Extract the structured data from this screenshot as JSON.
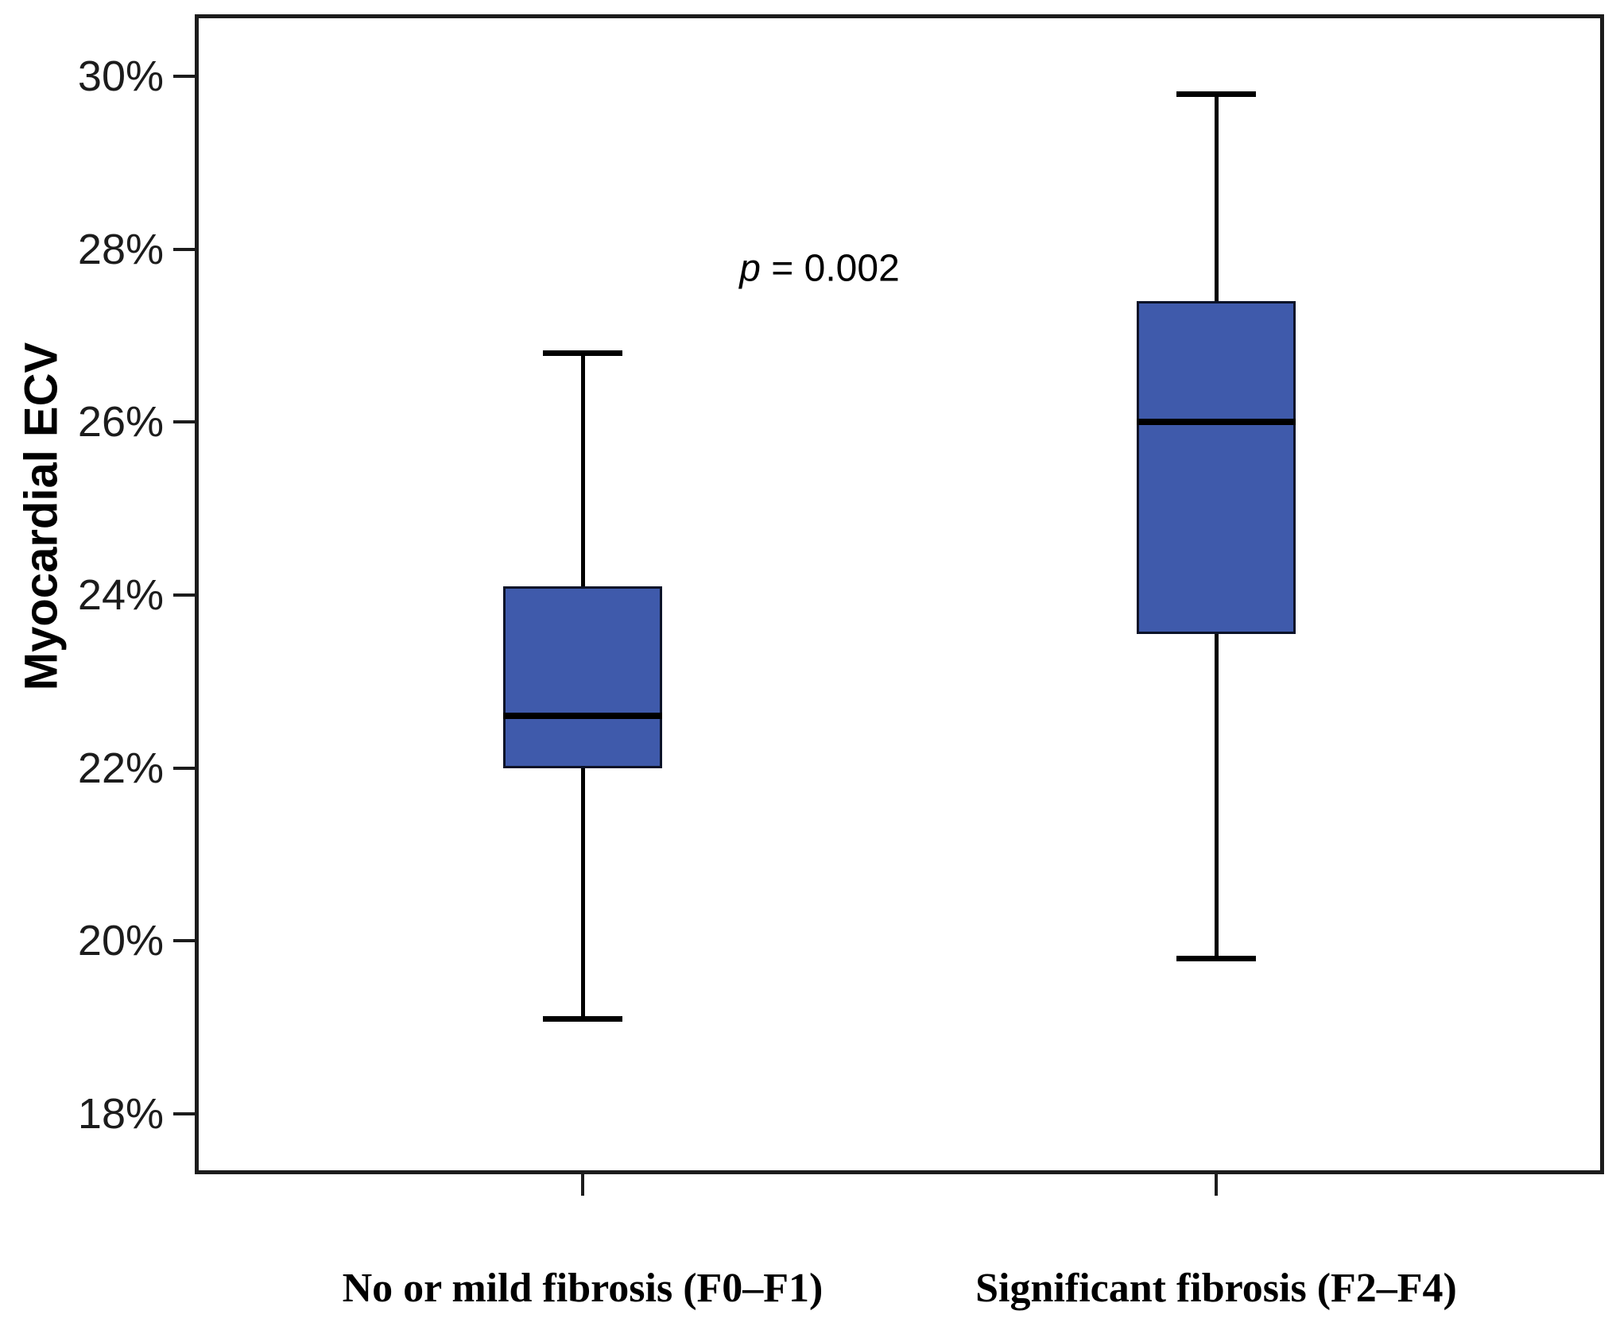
{
  "figure": {
    "type": "boxplot-figure",
    "background": "#ffffff"
  },
  "chart_data": {
    "type": "box",
    "title": "",
    "ylabel": "Myocardial ECV",
    "xlabel": "",
    "annotation": {
      "text": "p = 0.002",
      "p_symbol": "p",
      "p_rest": " = 0.002"
    },
    "y_axis": {
      "min": 18,
      "max": 30,
      "tick_step": 2,
      "unit": "%",
      "ticks": [
        {
          "value": 30,
          "label": "30%"
        },
        {
          "value": 28,
          "label": "28%"
        },
        {
          "value": 26,
          "label": "26%"
        },
        {
          "value": 24,
          "label": "24%"
        },
        {
          "value": 22,
          "label": "22%"
        },
        {
          "value": 20,
          "label": "20%"
        },
        {
          "value": 18,
          "label": "18%"
        }
      ]
    },
    "categories": [
      "No or mild fibrosis (F0–F1)",
      "Significant fibrosis (F2–F4)"
    ],
    "series": [
      {
        "category": "No or mild fibrosis (F0–F1)",
        "whisker_low": 19.1,
        "q1": 22.0,
        "median": 22.6,
        "q3": 24.1,
        "whisker_high": 26.8
      },
      {
        "category": "Significant fibrosis (F2–F4)",
        "whisker_low": 19.8,
        "q1": 23.55,
        "median": 26.0,
        "q3": 27.4,
        "whisker_high": 29.8
      }
    ],
    "layout_hints": {
      "grid": false,
      "legend": false,
      "orientation": "vertical"
    },
    "colors": {
      "box_fill": "#3f5aab",
      "box_border": "#0c1328",
      "line_color": "#000000",
      "axis_color": "#1c1c1c"
    }
  }
}
